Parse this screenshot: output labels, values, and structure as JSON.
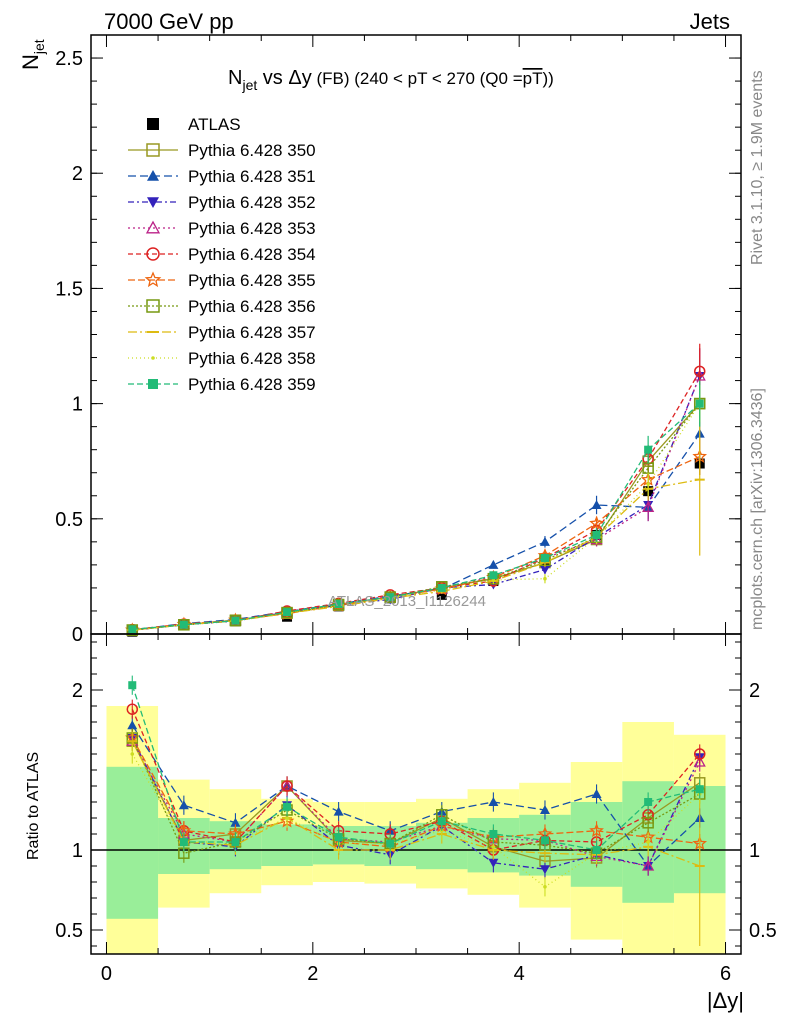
{
  "header": {
    "left": "7000 GeV pp",
    "right": "Jets"
  },
  "side_labels": {
    "rivet": "Rivet 3.1.10, ≥ 1.9M events",
    "source": "mcplots.cern.ch [arXiv:1306.3436]"
  },
  "watermark": "ATLAS_2013_I1126244",
  "chart_data": [
    {
      "type": "line",
      "panel": "main",
      "title": {
        "main": "N",
        "main_sub": "jet",
        "mid": " vs Δy",
        "small": " (FB)",
        "rest": " (240 < pT < 270 (Q0 =",
        "over": "pT",
        "close": "))"
      },
      "ylabel": "N",
      "ylabel_sub": "jet",
      "ylim": [
        0,
        2.6
      ],
      "yticks": [
        0,
        0.5,
        1,
        1.5,
        2,
        2.5
      ],
      "yticklabels": [
        "0",
        "0.5",
        "1",
        "1.5",
        "2",
        "2.5"
      ],
      "xlim": [
        -0.15,
        6.15
      ],
      "x": [
        0.25,
        0.75,
        1.25,
        1.75,
        2.25,
        2.75,
        3.25,
        3.75,
        4.25,
        4.75,
        5.25,
        5.75
      ],
      "series": [
        {
          "name": "ATLAS",
          "color": "#000000",
          "marker": "square-filled",
          "dash": "none",
          "values": [
            0.01,
            0.038,
            0.055,
            0.075,
            0.12,
            0.155,
            0.17,
            0.23,
            0.31,
            0.43,
            0.62,
            0.74
          ],
          "errors": [
            0.003,
            0.004,
            0.005,
            0.006,
            0.008,
            0.01,
            0.012,
            0.015,
            0.02,
            0.03,
            0.04,
            0.05
          ]
        },
        {
          "name": "Pythia 6.428 350",
          "color": "#999922",
          "marker": "square-open",
          "dash": "solid",
          "values": [
            0.017,
            0.04,
            0.06,
            0.09,
            0.125,
            0.16,
            0.2,
            0.24,
            0.31,
            0.41,
            0.75,
            1.0
          ],
          "errors": [
            0.002,
            0.003,
            0.004,
            0.005,
            0.007,
            0.009,
            0.011,
            0.014,
            0.02,
            0.03,
            0.05,
            0.08
          ]
        },
        {
          "name": "Pythia 6.428 351",
          "color": "#1550aa",
          "marker": "triangle-up-filled",
          "dash": "8,4",
          "values": [
            0.018,
            0.045,
            0.063,
            0.098,
            0.13,
            0.165,
            0.195,
            0.3,
            0.4,
            0.56,
            0.55,
            0.87
          ],
          "errors": [
            0.002,
            0.003,
            0.004,
            0.005,
            0.007,
            0.009,
            0.011,
            0.015,
            0.025,
            0.04,
            0.06,
            0.1
          ]
        },
        {
          "name": "Pythia 6.428 352",
          "color": "#3322bb",
          "marker": "triangle-down-filled",
          "dash": "6,3,2,3",
          "values": [
            0.017,
            0.04,
            0.056,
            0.095,
            0.125,
            0.15,
            0.2,
            0.215,
            0.28,
            0.42,
            0.56,
            1.12
          ],
          "errors": [
            0.002,
            0.003,
            0.004,
            0.005,
            0.007,
            0.009,
            0.011,
            0.014,
            0.02,
            0.03,
            0.06,
            0.12
          ]
        },
        {
          "name": "Pythia 6.428 353",
          "color": "#bb2288",
          "marker": "triangle-up-open",
          "dash": "2,3",
          "values": [
            0.017,
            0.042,
            0.058,
            0.098,
            0.128,
            0.163,
            0.195,
            0.25,
            0.33,
            0.41,
            0.55,
            1.12
          ],
          "errors": [
            0.002,
            0.003,
            0.004,
            0.005,
            0.007,
            0.009,
            0.011,
            0.014,
            0.02,
            0.03,
            0.06,
            0.12
          ]
        },
        {
          "name": "Pythia 6.428 354",
          "color": "#dd2222",
          "marker": "circle-open",
          "dash": "5,3",
          "values": [
            0.019,
            0.043,
            0.058,
            0.1,
            0.133,
            0.17,
            0.2,
            0.23,
            0.33,
            0.45,
            0.76,
            1.14
          ],
          "errors": [
            0.002,
            0.003,
            0.004,
            0.005,
            0.007,
            0.009,
            0.011,
            0.014,
            0.02,
            0.03,
            0.06,
            0.12
          ]
        },
        {
          "name": "Pythia 6.428 355",
          "color": "#ee6611",
          "marker": "star-open",
          "dash": "7,3",
          "values": [
            0.017,
            0.042,
            0.06,
            0.088,
            0.125,
            0.16,
            0.195,
            0.245,
            0.34,
            0.48,
            0.67,
            0.77
          ],
          "errors": [
            0.002,
            0.003,
            0.004,
            0.005,
            0.007,
            0.009,
            0.011,
            0.014,
            0.02,
            0.03,
            0.05,
            0.08
          ]
        },
        {
          "name": "Pythia 6.428 356",
          "color": "#779911",
          "marker": "square-open",
          "dash": "2,2",
          "values": [
            0.017,
            0.04,
            0.058,
            0.093,
            0.128,
            0.16,
            0.205,
            0.24,
            0.32,
            0.42,
            0.72,
            1.0
          ],
          "errors": [
            0.002,
            0.003,
            0.004,
            0.005,
            0.007,
            0.009,
            0.011,
            0.014,
            0.02,
            0.03,
            0.05,
            0.08
          ]
        },
        {
          "name": "Pythia 6.428 357",
          "color": "#ddbb11",
          "marker": "dash",
          "dash": "9,3,2,3",
          "values": [
            0.017,
            0.04,
            0.057,
            0.09,
            0.12,
            0.155,
            0.185,
            0.23,
            0.31,
            0.42,
            0.63,
            0.67
          ],
          "errors": [
            0.002,
            0.003,
            0.004,
            0.005,
            0.007,
            0.009,
            0.011,
            0.014,
            0.02,
            0.03,
            0.05,
            0.33
          ]
        },
        {
          "name": "Pythia 6.428 358",
          "color": "#ccdd22",
          "marker": "dot",
          "dash": "1,3",
          "values": [
            0.016,
            0.04,
            0.058,
            0.09,
            0.125,
            0.16,
            0.19,
            0.235,
            0.24,
            0.42,
            0.65,
            1.0
          ],
          "errors": [
            0.002,
            0.003,
            0.004,
            0.005,
            0.007,
            0.009,
            0.011,
            0.014,
            0.02,
            0.03,
            0.05,
            0.08
          ]
        },
        {
          "name": "Pythia 6.428 359",
          "color": "#22bb77",
          "marker": "square-filled-small",
          "dash": "6,3",
          "values": [
            0.02,
            0.04,
            0.058,
            0.095,
            0.13,
            0.16,
            0.2,
            0.255,
            0.33,
            0.43,
            0.8,
            1.0
          ],
          "errors": [
            0.002,
            0.003,
            0.004,
            0.005,
            0.007,
            0.009,
            0.011,
            0.014,
            0.02,
            0.03,
            0.06,
            0.1
          ]
        }
      ],
      "legend_position": "top-left"
    },
    {
      "type": "line",
      "panel": "ratio",
      "ylabel": "Ratio to ATLAS",
      "xlabel": "|Δy|",
      "ylim": [
        0.35,
        2.35
      ],
      "yticks": [
        0.5,
        1,
        2
      ],
      "yticklabels": [
        "0.5",
        "1",
        "2"
      ],
      "xlim": [
        -0.15,
        6.15
      ],
      "xticks": [
        0,
        2,
        4,
        6
      ],
      "xticklabels": [
        "0",
        "2",
        "4",
        "6"
      ],
      "reference_line": 1,
      "bands": {
        "bin_edges": [
          0,
          0.5,
          1,
          1.5,
          2,
          2.5,
          3,
          3.5,
          4,
          4.5,
          5,
          5.5,
          6
        ],
        "yellow_lo": [
          0.35,
          0.64,
          0.73,
          0.78,
          0.8,
          0.79,
          0.76,
          0.72,
          0.64,
          0.44,
          0.35,
          0.35
        ],
        "yellow_hi": [
          1.9,
          1.44,
          1.38,
          1.32,
          1.3,
          1.3,
          1.32,
          1.38,
          1.42,
          1.55,
          1.8,
          1.72
        ],
        "green_lo": [
          0.57,
          0.85,
          0.88,
          0.9,
          0.91,
          0.9,
          0.88,
          0.86,
          0.84,
          0.77,
          0.67,
          0.73
        ],
        "green_hi": [
          1.52,
          1.2,
          1.18,
          1.16,
          1.15,
          1.15,
          1.17,
          1.2,
          1.22,
          1.3,
          1.43,
          1.4
        ]
      },
      "x": [
        0.25,
        0.75,
        1.25,
        1.75,
        2.25,
        2.75,
        3.25,
        3.75,
        4.25,
        4.75,
        5.25,
        5.75
      ],
      "series": [
        {
          "name": "Pythia 6.428 350",
          "values": [
            1.68,
            1.06,
            1.1,
            1.4,
            1.06,
            1.04,
            1.2,
            1.02,
            0.93,
            0.95,
            1.2,
            1.42
          ]
        },
        {
          "name": "Pythia 6.428 351",
          "values": [
            1.78,
            1.28,
            1.17,
            1.4,
            1.24,
            1.12,
            1.24,
            1.3,
            1.25,
            1.35,
            0.9,
            1.2
          ]
        },
        {
          "name": "Pythia 6.428 352",
          "values": [
            1.7,
            1.05,
            1.02,
            1.28,
            1.03,
            0.97,
            1.15,
            0.92,
            0.88,
            0.97,
            0.9,
            1.58
          ]
        },
        {
          "name": "Pythia 6.428 353",
          "values": [
            1.68,
            1.1,
            1.05,
            1.4,
            1.07,
            1.05,
            1.15,
            1.07,
            1.06,
            0.96,
            0.9,
            1.55
          ]
        },
        {
          "name": "Pythia 6.428 354",
          "values": [
            1.88,
            1.12,
            1.05,
            1.4,
            1.12,
            1.1,
            1.18,
            1.0,
            1.06,
            1.05,
            1.22,
            1.6
          ]
        },
        {
          "name": "Pythia 6.428 355",
          "values": [
            1.7,
            1.12,
            1.1,
            1.18,
            1.05,
            1.02,
            1.15,
            1.08,
            1.1,
            1.12,
            1.08,
            1.04
          ]
        },
        {
          "name": "Pythia 6.428 356",
          "values": [
            1.7,
            0.98,
            1.05,
            1.25,
            1.07,
            1.04,
            1.22,
            1.05,
            1.03,
            0.98,
            1.17,
            1.35
          ]
        },
        {
          "name": "Pythia 6.428 357",
          "values": [
            1.68,
            1.05,
            1.03,
            1.2,
            1.0,
            1.0,
            1.1,
            1.0,
            0.98,
            0.97,
            1.02,
            0.9
          ]
        },
        {
          "name": "Pythia 6.428 358",
          "values": [
            1.6,
            1.05,
            1.05,
            1.2,
            1.04,
            1.04,
            1.12,
            1.02,
            0.77,
            0.98,
            1.05,
            1.35
          ]
        },
        {
          "name": "Pythia 6.428 359",
          "values": [
            2.03,
            1.05,
            1.05,
            1.27,
            1.08,
            1.04,
            1.18,
            1.1,
            1.06,
            1.0,
            1.3,
            1.38
          ]
        }
      ]
    }
  ]
}
